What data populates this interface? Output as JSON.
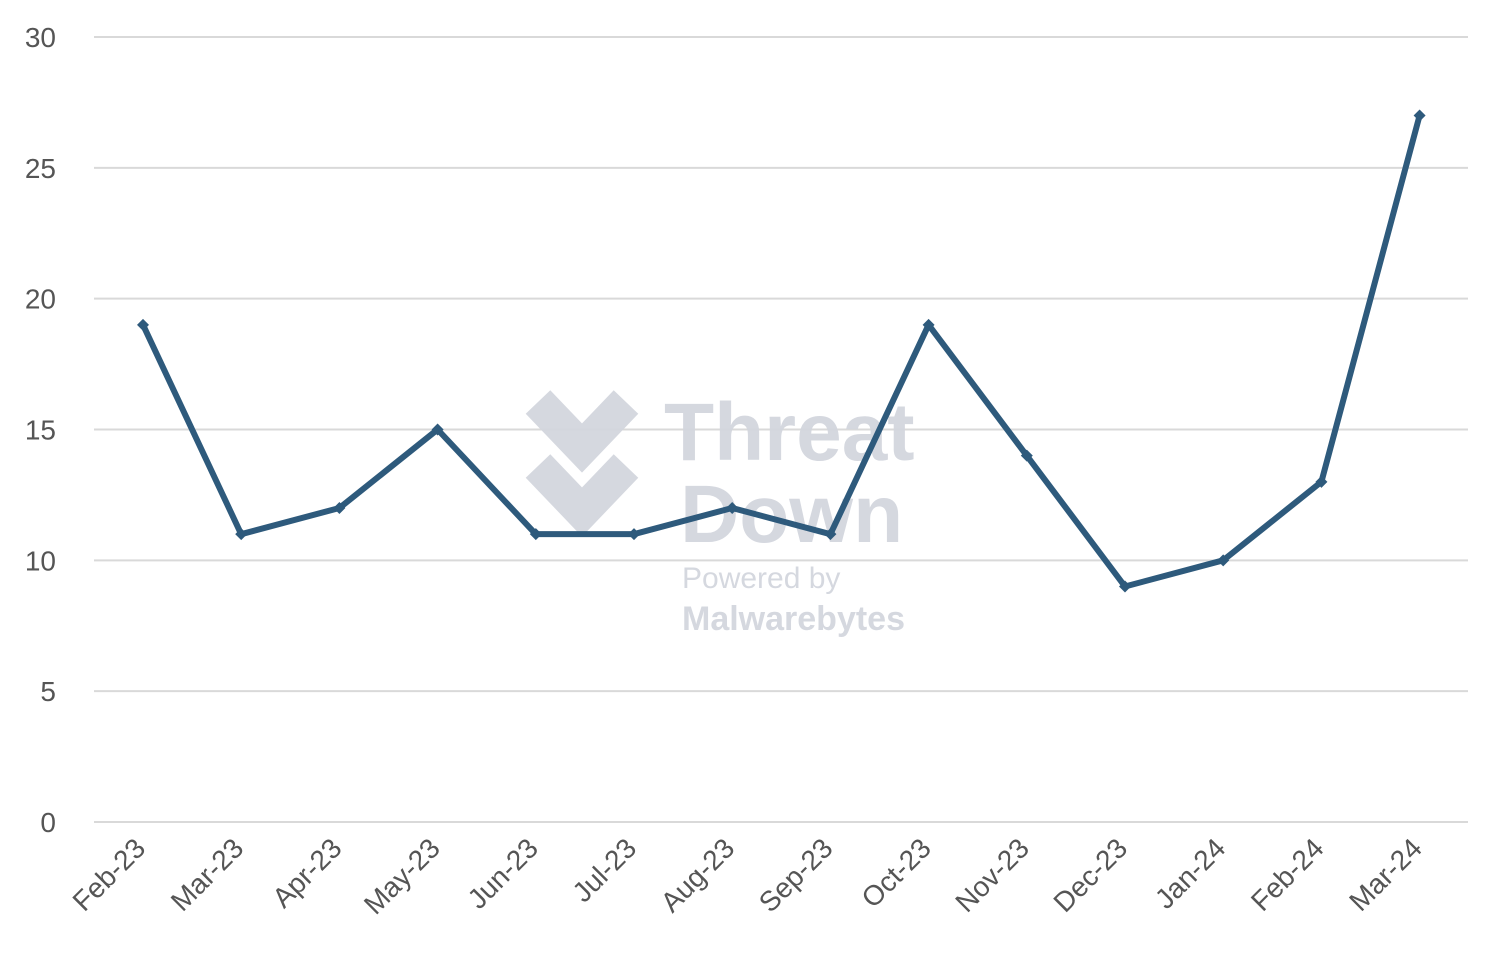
{
  "chart_data": {
    "type": "line",
    "categories": [
      "Feb-23",
      "Mar-23",
      "Apr-23",
      "May-23",
      "Jun-23",
      "Jul-23",
      "Aug-23",
      "Sep-23",
      "Oct-23",
      "Nov-23",
      "Dec-23",
      "Jan-24",
      "Feb-24",
      "Mar-24"
    ],
    "series": [
      {
        "values": [
          19,
          11,
          12,
          15,
          11,
          11,
          12,
          11,
          19,
          14,
          9,
          10,
          13,
          27
        ]
      }
    ],
    "yticks": [
      "0",
      "5",
      "10",
      "15",
      "20",
      "25",
      "30"
    ],
    "ylim": [
      0,
      30
    ],
    "grid": true,
    "line_color": "#2e5a7c",
    "grid_color": "#d9d9d9"
  },
  "watermark": {
    "line1": "Threat",
    "line2": "Down",
    "line3": "Powered by",
    "line4": "Malwarebytes",
    "color": "#d3d6de"
  }
}
